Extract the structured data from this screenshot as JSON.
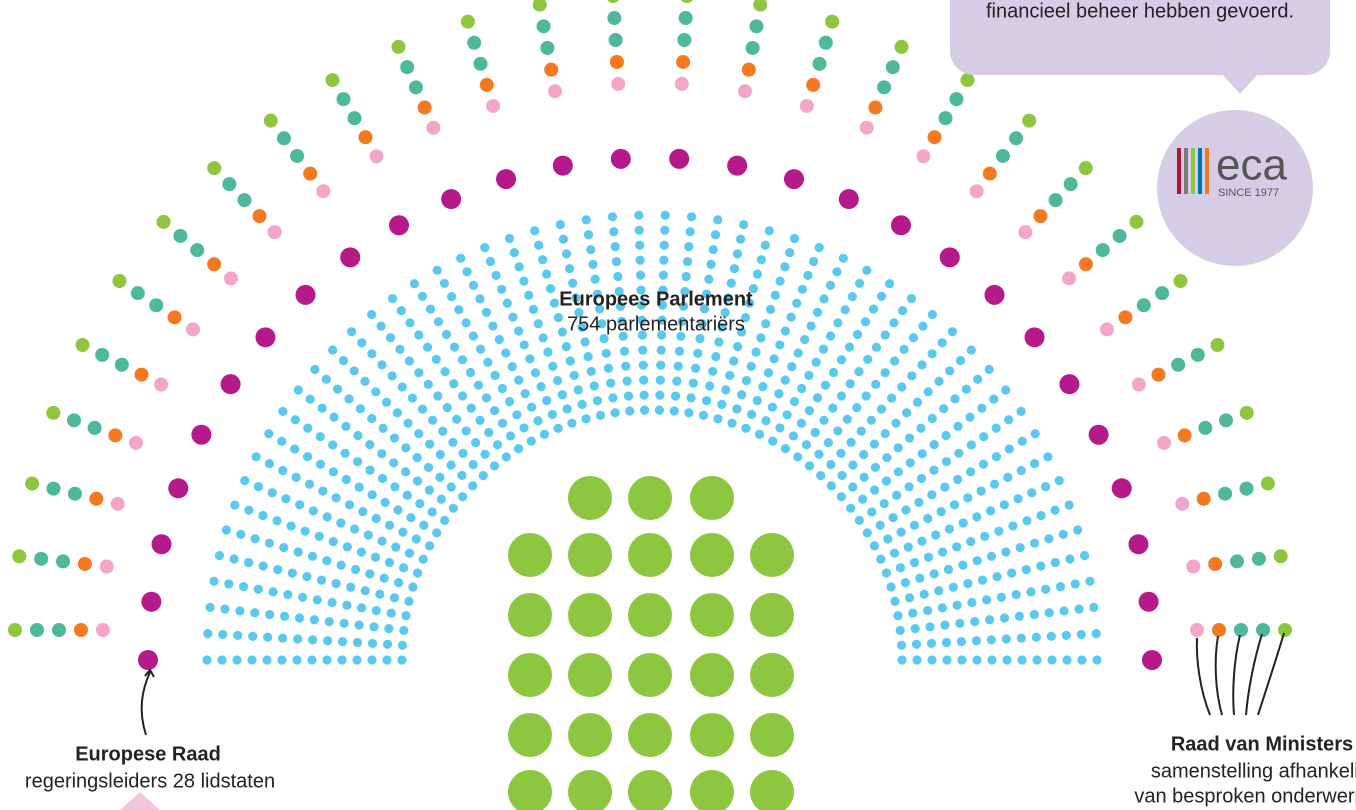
{
  "bubble": {
    "text": "financieel beheer hebben gevoerd.",
    "logo": "eca",
    "since": "SINCE 1977"
  },
  "parliament": {
    "title": "Europees Parlement",
    "subtitle": "754 parlementariërs"
  },
  "european_council": {
    "title": "Europese Raad",
    "subtitle": "regeringsleiders 28 lidstaten"
  },
  "council_of_ministers": {
    "title": "Raad van Ministers",
    "lines": [
      "samenstelling afhankelijk",
      "van besproken onderwerp"
    ]
  }
}
